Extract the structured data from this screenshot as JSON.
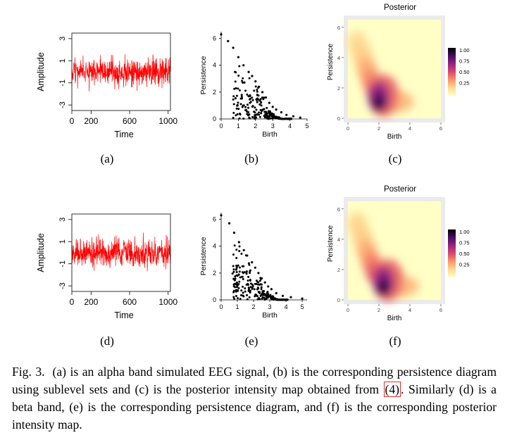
{
  "figure": {
    "panels": [
      {
        "id": "a",
        "kind": "signal",
        "label": "(a)",
        "xlabel": "Time",
        "ylabel": "Amplitude",
        "xticks": [
          "0",
          "200",
          "600",
          "1000"
        ],
        "yticks": [
          "3",
          "1",
          "-1",
          "-3"
        ]
      },
      {
        "id": "b",
        "kind": "scatter",
        "label": "(b)",
        "xlabel": "Birth",
        "ylabel": "Persistence",
        "xticks": [
          "0",
          "1",
          "2",
          "3",
          "4",
          "5"
        ],
        "yticks": [
          "0",
          "2",
          "4",
          "6"
        ]
      },
      {
        "id": "c",
        "kind": "heatmap",
        "label": "(c)",
        "title": "Posterior",
        "xlabel": "Birth",
        "ylabel": "Persistence",
        "xticks": [
          "0",
          "2",
          "4",
          "6"
        ],
        "yticks": [
          "0",
          "2",
          "4",
          "6"
        ],
        "legend": [
          "1.00",
          "0.75",
          "0.50",
          "0.25"
        ]
      },
      {
        "id": "d",
        "kind": "signal",
        "label": "(d)",
        "xlabel": "Time",
        "ylabel": "Amplitude",
        "xticks": [
          "0",
          "200",
          "600",
          "1000"
        ],
        "yticks": [
          "3",
          "1",
          "-1",
          "-3"
        ]
      },
      {
        "id": "e",
        "kind": "scatter",
        "label": "(e)",
        "xlabel": "Birth",
        "ylabel": "Persistence",
        "xticks": [
          "0",
          "1",
          "2",
          "3",
          "4",
          "5"
        ],
        "yticks": [
          "0",
          "2",
          "4",
          "6"
        ]
      },
      {
        "id": "f",
        "kind": "heatmap",
        "label": "(f)",
        "title": "Posterior",
        "xlabel": "Birth",
        "ylabel": "Persistence",
        "xticks": [
          "0",
          "2",
          "4",
          "6"
        ],
        "yticks": [
          "0",
          "2",
          "4",
          "6"
        ],
        "legend": [
          "1.00",
          "0.75",
          "0.50",
          "0.25"
        ]
      }
    ]
  },
  "caption": {
    "prefix": "Fig. 3.",
    "part1": "(a) is an alpha band simulated EEG signal, (b) is the corresponding persistence diagram using sublevel sets and (c) is the posterior intensity map obtained from",
    "ref": "(4)",
    "part2": ". Similarly (d) is a beta band, (e) is the corresponding persistence diagram, and (f) is the corresponding posterior intensity map."
  },
  "colors": {
    "signal": "#ff0000",
    "points": "#000000",
    "heat_bg": "#ffffc6"
  },
  "chart_data": [
    {
      "type": "line",
      "panel": "a",
      "xlabel": "Time",
      "ylabel": "Amplitude",
      "xlim": [
        0,
        1024
      ],
      "ylim": [
        -3.5,
        3.5
      ],
      "series": [
        {
          "values": "simulated noise signal, approx. range -3 to 3"
        }
      ]
    },
    {
      "type": "scatter",
      "panel": "b",
      "xlabel": "Birth",
      "ylabel": "Persistence",
      "xlim": [
        0,
        5
      ],
      "ylim": [
        0,
        6.5
      ],
      "points": [
        [
          0,
          6.3
        ],
        [
          0.4,
          5.8
        ],
        [
          0.7,
          5.3
        ],
        [
          1.0,
          4.6
        ],
        [
          1.3,
          4.0
        ],
        [
          1.6,
          3.5
        ],
        [
          1.8,
          3.2
        ],
        [
          2.0,
          2.8
        ],
        [
          2.2,
          2.4
        ],
        [
          2.4,
          2.0
        ],
        [
          2.6,
          1.6
        ],
        [
          2.8,
          1.2
        ],
        [
          3.0,
          0.9
        ],
        [
          3.2,
          0.7
        ],
        [
          3.5,
          0.5
        ],
        [
          3.8,
          0.3
        ],
        [
          4.2,
          0.2
        ],
        [
          4.6,
          0.1
        ]
      ]
    },
    {
      "type": "heatmap",
      "panel": "c",
      "title": "Posterior",
      "xlabel": "Birth",
      "ylabel": "Persistence",
      "xlim": [
        0,
        6
      ],
      "ylim": [
        0,
        6.5
      ],
      "peak": [
        2.0,
        0.8
      ],
      "legend": [
        "1.00",
        "0.75",
        "0.50",
        "0.25"
      ]
    },
    {
      "type": "line",
      "panel": "d",
      "xlabel": "Time",
      "ylabel": "Amplitude",
      "xlim": [
        0,
        1024
      ],
      "ylim": [
        -3.5,
        3.5
      ],
      "series": [
        {
          "values": "simulated noise signal, approx. range -3 to 3"
        }
      ]
    },
    {
      "type": "scatter",
      "panel": "e",
      "xlabel": "Birth",
      "ylabel": "Persistence",
      "xlim": [
        0,
        5.3
      ],
      "ylim": [
        0,
        6.5
      ],
      "points": [
        [
          0,
          6.3
        ],
        [
          0.5,
          5.7
        ],
        [
          0.8,
          5.0
        ],
        [
          1.1,
          4.3
        ],
        [
          1.4,
          3.7
        ],
        [
          1.6,
          3.3
        ],
        [
          1.9,
          2.8
        ],
        [
          2.1,
          2.4
        ],
        [
          2.3,
          2.0
        ],
        [
          2.5,
          1.6
        ],
        [
          2.7,
          1.3
        ],
        [
          2.9,
          1.0
        ],
        [
          3.1,
          0.8
        ],
        [
          3.4,
          0.5
        ],
        [
          3.8,
          0.3
        ],
        [
          4.3,
          0.2
        ],
        [
          5.0,
          0.1
        ]
      ]
    },
    {
      "type": "heatmap",
      "panel": "f",
      "title": "Posterior",
      "xlabel": "Birth",
      "ylabel": "Persistence",
      "xlim": [
        0,
        6
      ],
      "ylim": [
        0,
        6.5
      ],
      "peak": [
        2.3,
        0.6
      ],
      "legend": [
        "1.00",
        "0.75",
        "0.50",
        "0.25"
      ]
    }
  ]
}
